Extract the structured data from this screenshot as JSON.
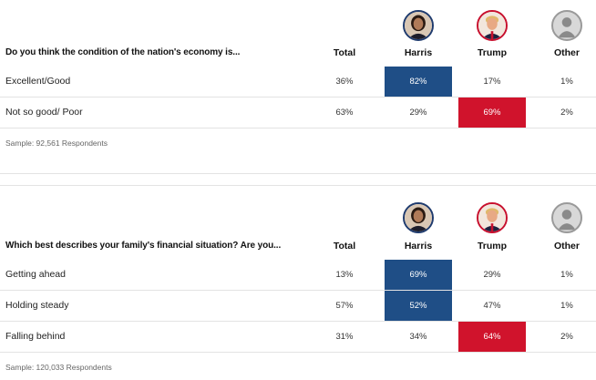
{
  "candidates": {
    "total": "Total",
    "harris": "Harris",
    "trump": "Trump",
    "other": "Other"
  },
  "colors": {
    "harris_highlight": "#1f4e86",
    "trump_highlight": "#d0132c"
  },
  "polls": [
    {
      "question": "Do you think the condition of the nation's economy is...",
      "rows": [
        {
          "label": "Excellent/Good",
          "total": "36%",
          "harris": "82%",
          "trump": "17%",
          "other": "1%",
          "winner": "harris"
        },
        {
          "label": "Not so good/ Poor",
          "total": "63%",
          "harris": "29%",
          "trump": "69%",
          "other": "2%",
          "winner": "trump"
        }
      ],
      "sample": "Sample: 92,561 Respondents"
    },
    {
      "question": "Which best describes your family's financial situation? Are you...",
      "rows": [
        {
          "label": "Getting ahead",
          "total": "13%",
          "harris": "69%",
          "trump": "29%",
          "other": "1%",
          "winner": "harris"
        },
        {
          "label": "Holding steady",
          "total": "57%",
          "harris": "52%",
          "trump": "47%",
          "other": "1%",
          "winner": "harris"
        },
        {
          "label": "Falling behind",
          "total": "31%",
          "harris": "34%",
          "trump": "64%",
          "other": "2%",
          "winner": "trump"
        }
      ],
      "sample": "Sample: 120,033 Respondents"
    }
  ]
}
